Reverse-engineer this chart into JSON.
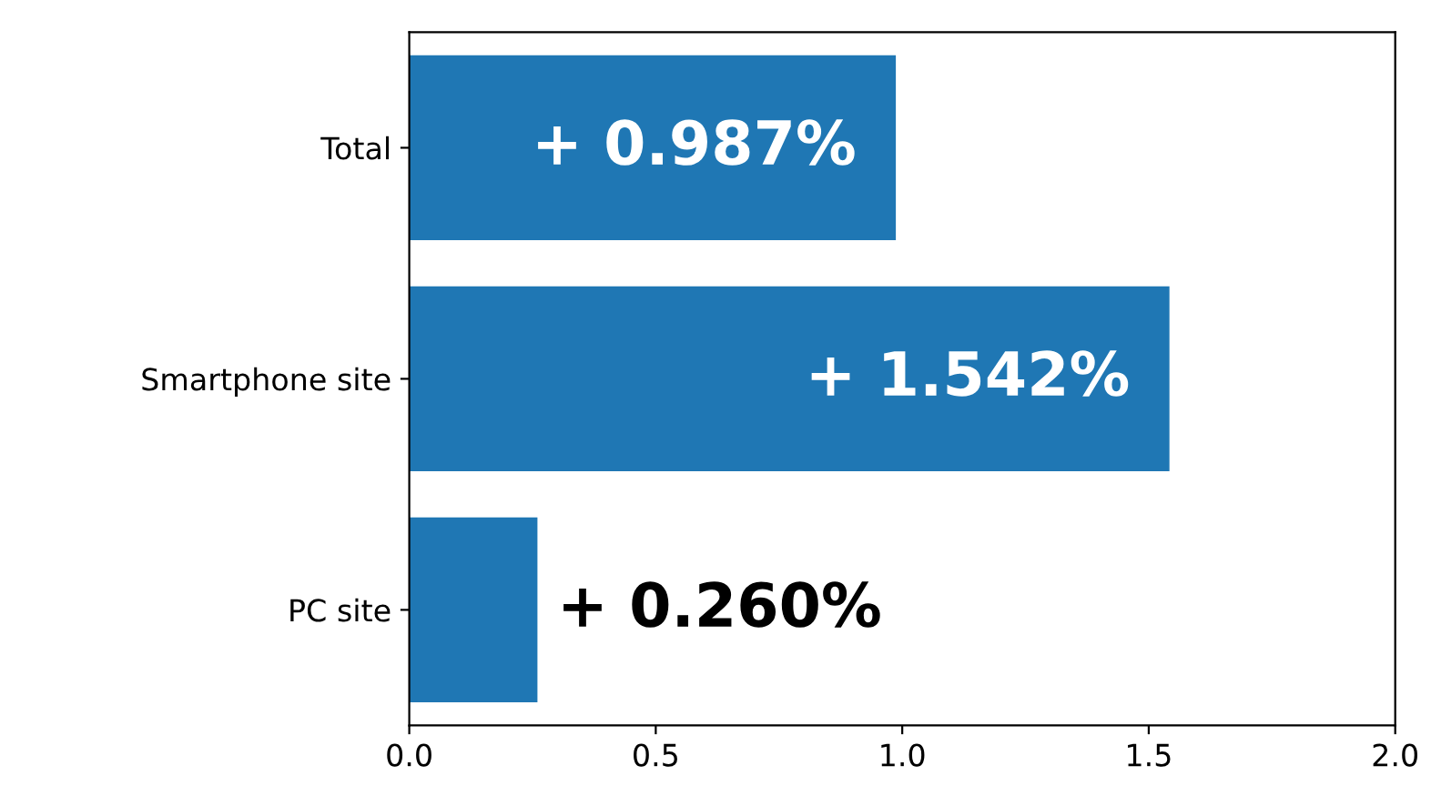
{
  "chart_data": {
    "type": "bar",
    "orientation": "horizontal",
    "categories": [
      "Total",
      "Smartphone site",
      "PC site"
    ],
    "values": [
      0.987,
      1.542,
      0.26
    ],
    "value_labels": [
      "+ 0.987%",
      "+ 1.542%",
      "+ 0.260%"
    ],
    "color": "#1f77b4",
    "xlim": [
      0,
      2.0
    ],
    "xticks": [
      {
        "value": 0,
        "label": "0.0"
      },
      {
        "value": 0.5,
        "label": "0.5"
      },
      {
        "value": 1.0,
        "label": "1.0"
      },
      {
        "value": 1.5,
        "label": "1.5"
      },
      {
        "value": 2.0,
        "label": "2.0"
      }
    ],
    "grid": false,
    "legend": false
  }
}
